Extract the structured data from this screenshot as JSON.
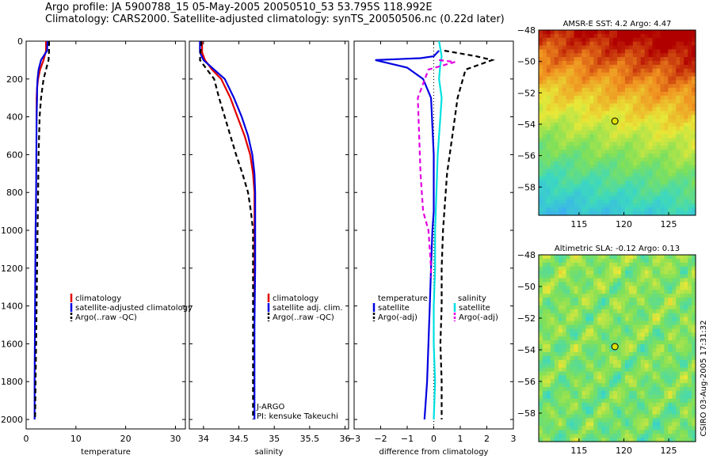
{
  "header": {
    "line1": "Argo profile: JA 5900788_15 05-May-2005 20050510_53 53.795S 118.992E",
    "line2": "Climatology: CARS2000. Satellite-adjusted climatology: synTS_20050506.nc (0.22d later)"
  },
  "side_label": "CSIRO 03-Aug-2005 17:31:32",
  "credits": [
    "J-ARGO",
    "PI: kensuke Takeuchi"
  ],
  "colors": {
    "red": "#e00000",
    "blue": "#0000e0",
    "black": "#000000",
    "cyan": "#00e0e0",
    "magenta": "#e000e0",
    "map_dot": "#e0e000"
  },
  "chart_data": [
    {
      "type": "line",
      "xlabel": "temperature",
      "xlim": [
        0,
        32
      ],
      "ylim": [
        2050,
        0
      ],
      "xticks": [
        0,
        10,
        20,
        30
      ],
      "yticks": [
        0,
        200,
        400,
        600,
        800,
        1000,
        1200,
        1400,
        1600,
        1800,
        2000
      ],
      "legend": [
        "climatology",
        "satellite-adjusted climatology",
        "Argo(..raw -QC)"
      ],
      "series": [
        {
          "name": "climatology",
          "color": "#e00000",
          "dash": "",
          "x": [
            4.0,
            4.0,
            3.5,
            2.8,
            2.4,
            2.2,
            2.1,
            2.1
          ],
          "y": [
            0,
            50,
            100,
            150,
            200,
            250,
            300,
            420
          ]
        },
        {
          "name": "satellite-adjusted climatology",
          "color": "#0000e0",
          "dash": "",
          "x": [
            4.3,
            4.2,
            3.0,
            2.5,
            2.3,
            2.2,
            2.2,
            2.1,
            2.05,
            2.0,
            1.9,
            1.85,
            1.8,
            1.75,
            1.7,
            1.7
          ],
          "y": [
            0,
            50,
            100,
            150,
            200,
            250,
            300,
            400,
            600,
            800,
            1000,
            1200,
            1400,
            1600,
            1800,
            2000
          ]
        },
        {
          "name": "Argo(..raw -QC)",
          "color": "#000000",
          "dash": "6,4",
          "x": [
            4.6,
            4.6,
            4.5,
            4.0,
            3.5,
            3.0,
            2.7,
            2.5,
            2.4,
            2.3,
            2.2,
            2.1,
            2.0,
            1.9,
            1.8
          ],
          "y": [
            0,
            50,
            100,
            150,
            200,
            300,
            400,
            600,
            800,
            1000,
            1200,
            1400,
            1600,
            1800,
            2000
          ]
        }
      ]
    },
    {
      "type": "line",
      "xlabel": "salinity",
      "xlim": [
        33.8,
        36.05
      ],
      "ylim": [
        2050,
        0
      ],
      "xticks": [
        34,
        34.5,
        35,
        35.5,
        36
      ],
      "xticklabels": [
        "34",
        "34.5",
        "35",
        "35.5",
        "36"
      ],
      "legend": [
        "climatology",
        "satellite adj. clim.",
        "Argo(..raw -QC)"
      ],
      "series": [
        {
          "name": "climatology",
          "color": "#e00000",
          "dash": "",
          "x": [
            33.98,
            33.98,
            34.02,
            34.12,
            34.25,
            34.38,
            34.48,
            34.58,
            34.66,
            34.7,
            34.72,
            34.72,
            34.72,
            34.72
          ],
          "y": [
            0,
            60,
            100,
            150,
            200,
            300,
            400,
            500,
            600,
            700,
            800,
            1000,
            1200,
            1400
          ]
        },
        {
          "name": "satellite adj. clim.",
          "color": "#0000e0",
          "dash": "",
          "x": [
            33.95,
            33.95,
            34.0,
            34.15,
            34.3,
            34.43,
            34.54,
            34.63,
            34.69,
            34.72,
            34.73,
            34.73,
            34.73,
            34.72,
            34.72,
            34.72
          ],
          "y": [
            0,
            60,
            100,
            150,
            200,
            300,
            400,
            500,
            600,
            700,
            800,
            1000,
            1200,
            1500,
            1800,
            2000
          ]
        },
        {
          "name": "Argo(..raw -QC)",
          "color": "#000000",
          "dash": "6,4",
          "x": [
            33.97,
            33.95,
            34.05,
            34.15,
            34.22,
            34.3,
            34.38,
            34.46,
            34.55,
            34.63,
            34.67,
            34.7,
            34.7,
            34.7
          ],
          "y": [
            0,
            100,
            150,
            200,
            300,
            400,
            500,
            600,
            700,
            800,
            900,
            1000,
            1200,
            2000
          ]
        }
      ]
    },
    {
      "type": "line",
      "xlabel": "difference from climatology",
      "xlim": [
        -3,
        3
      ],
      "ylim": [
        2050,
        0
      ],
      "xticks": [
        -3,
        -2,
        -1,
        0,
        1,
        2,
        3
      ],
      "legend_left": [
        "temperature",
        "satellite",
        "Argo(-adj)"
      ],
      "legend_right": [
        "salinity",
        "satellite",
        "Argo(-adj)"
      ],
      "series": [
        {
          "name": "satellite",
          "color": "#0000e0",
          "dash": "",
          "x": [
            0.2,
            0.0,
            -0.5,
            -2.2,
            -1.0,
            -0.4,
            -0.1,
            0.0,
            0.0,
            -0.05,
            -0.1,
            -0.15,
            -0.2,
            -0.25,
            -0.3,
            -0.35
          ],
          "y": [
            50,
            80,
            90,
            100,
            140,
            200,
            300,
            600,
            900,
            1000,
            1200,
            1400,
            1600,
            1800,
            1900,
            2000
          ]
        },
        {
          "name": "Argo(-adj)",
          "color": "#000000",
          "dash": "6,4",
          "x": [
            0.4,
            1.6,
            2.2,
            1.2,
            0.9,
            0.7,
            0.5,
            0.4,
            0.35,
            0.3,
            0.3,
            0.25,
            0.3,
            0.3
          ],
          "y": [
            50,
            80,
            100,
            150,
            300,
            500,
            700,
            900,
            1000,
            1200,
            1400,
            1600,
            1800,
            2000
          ]
        },
        {
          "name": "satellite",
          "color": "#00e0e0",
          "dash": "",
          "x": [
            0.2,
            0.3,
            0.25,
            0.2,
            0.3,
            0.25,
            0.2,
            0.15,
            0.1,
            0.05,
            0.05,
            0.0,
            0.0,
            0.05,
            0.0
          ],
          "y": [
            0,
            80,
            120,
            200,
            300,
            400,
            500,
            600,
            800,
            1000,
            1200,
            1400,
            1600,
            1800,
            2000
          ]
        },
        {
          "name": "Argo(-adj)",
          "color": "#e000e0",
          "dash": "6,4",
          "x": [
            0.2,
            0.8,
            -0.2,
            -0.6,
            -0.55,
            -0.5,
            -0.4,
            -0.2,
            -0.15,
            -0.1,
            -0.1
          ],
          "y": [
            100,
            110,
            150,
            300,
            500,
            700,
            900,
            1000,
            1100,
            1200,
            1250
          ]
        }
      ]
    },
    {
      "type": "heatmap",
      "title": "AMSR-E SST: 4.2 Argo: 4.47",
      "xlim": [
        110.5,
        128
      ],
      "ylim": [
        -59.8,
        -48
      ],
      "xticks": [
        115,
        120,
        125
      ],
      "yticks": [
        -48,
        -50,
        -52,
        -54,
        -56,
        -58
      ],
      "marker": {
        "x": 119.0,
        "y": -53.8
      }
    },
    {
      "type": "heatmap",
      "title": "Altimetric SLA: -0.12 Argo: 0.13",
      "xlim": [
        110.5,
        128
      ],
      "ylim": [
        -59.8,
        -48
      ],
      "xticks": [
        115,
        120,
        125
      ],
      "yticks": [
        -48,
        -50,
        -52,
        -54,
        -56,
        -58
      ],
      "marker": {
        "x": 119.0,
        "y": -53.8
      }
    }
  ]
}
